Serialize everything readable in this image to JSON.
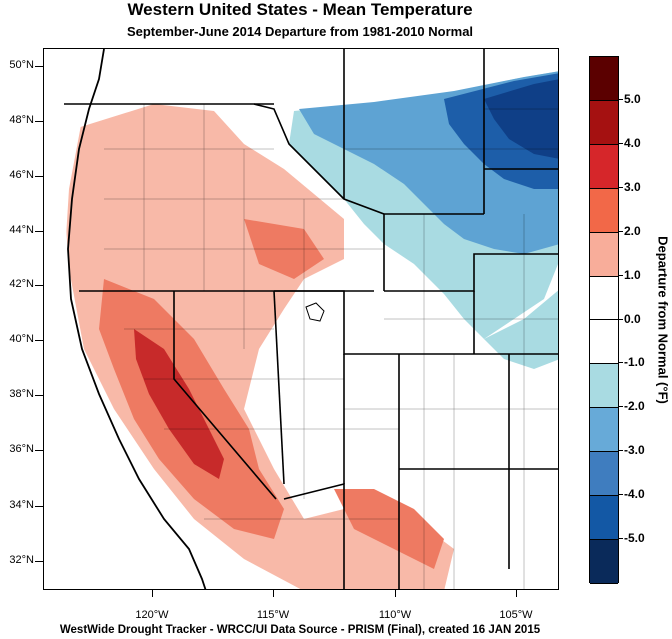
{
  "title": "Western United States - Mean Temperature",
  "subtitle": "September-June 2014  Departure from 1981-2010 Normal",
  "footer": "WestWide Drought Tracker - WRCC/UI  Data Source - PRISM (Final), created 16 JAN 2015",
  "colorbar": {
    "title": "Departure from Normal (°F)",
    "labels": [
      "5.0",
      "4.0",
      "3.0",
      "2.0",
      "1.0",
      "0.0",
      "-1.0",
      "-2.0",
      "-3.0",
      "-4.0",
      "-5.0"
    ],
    "colors": [
      "#5b0000",
      "#a51111",
      "#d6262a",
      "#f26848",
      "#f8ad9a",
      "#ffffff",
      "#ffffff",
      "#a9dbe2",
      "#67aad8",
      "#3f7dbf",
      "#1358a5",
      "#0a2a5a"
    ]
  },
  "lat_labels": [
    "50°N",
    "48°N",
    "46°N",
    "44°N",
    "42°N",
    "40°N",
    "38°N",
    "36°N",
    "34°N",
    "32°N"
  ],
  "lon_labels": [
    "120°W",
    "115°W",
    "110°W",
    "105°W"
  ],
  "colors": {
    "warm_light": "#f8b9a8",
    "warm_mid": "#ee7a62",
    "warm_dark": "#c72a2a",
    "cool_light": "#a9dbe2",
    "cool_mid": "#5ea3d3",
    "cool_dark": "#1d5ea9"
  }
}
